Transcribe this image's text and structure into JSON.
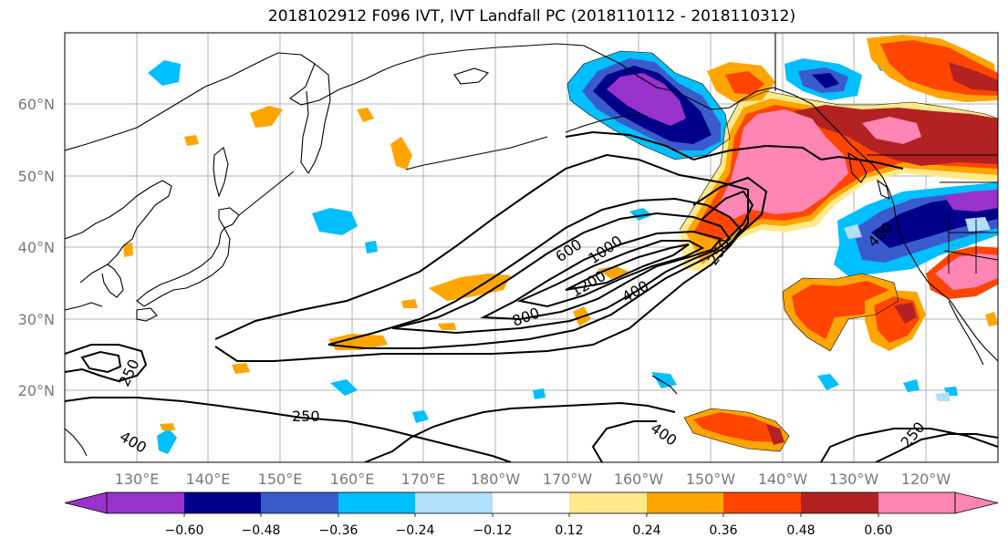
{
  "title": "2018102912 F096 IVT, IVT Landfall PC (2018110112 - 2018110312)",
  "lat_labels": [
    "60°N",
    "50°N",
    "40°N",
    "30°N",
    "20°N"
  ],
  "lon_labels": [
    "130°E",
    "140°E",
    "150°E",
    "160°E",
    "170°E",
    "180°W",
    "170°W",
    "160°W",
    "150°W",
    "140°W",
    "130°W",
    "120°W"
  ],
  "colorbar": {
    "ticks": [
      "−0.60",
      "−0.48",
      "−0.36",
      "−0.24",
      "−0.12",
      "0.12",
      "0.24",
      "0.36",
      "0.48",
      "0.60"
    ],
    "colors": [
      "#9932cc",
      "#00008b",
      "#3a5bcc",
      "#00bfff",
      "#b0e0fc",
      "#ffffff",
      "#ffe98a",
      "#ffa500",
      "#ff4500",
      "#b22222",
      "#ff85b4"
    ]
  },
  "contour_labels": [
    "250",
    "250",
    "250",
    "250",
    "400",
    "400",
    "400",
    "400",
    "600",
    "800",
    "1000",
    "1200"
  ],
  "icons": {
    "extend_min": "triangle-left",
    "extend_max": "triangle-right"
  }
}
